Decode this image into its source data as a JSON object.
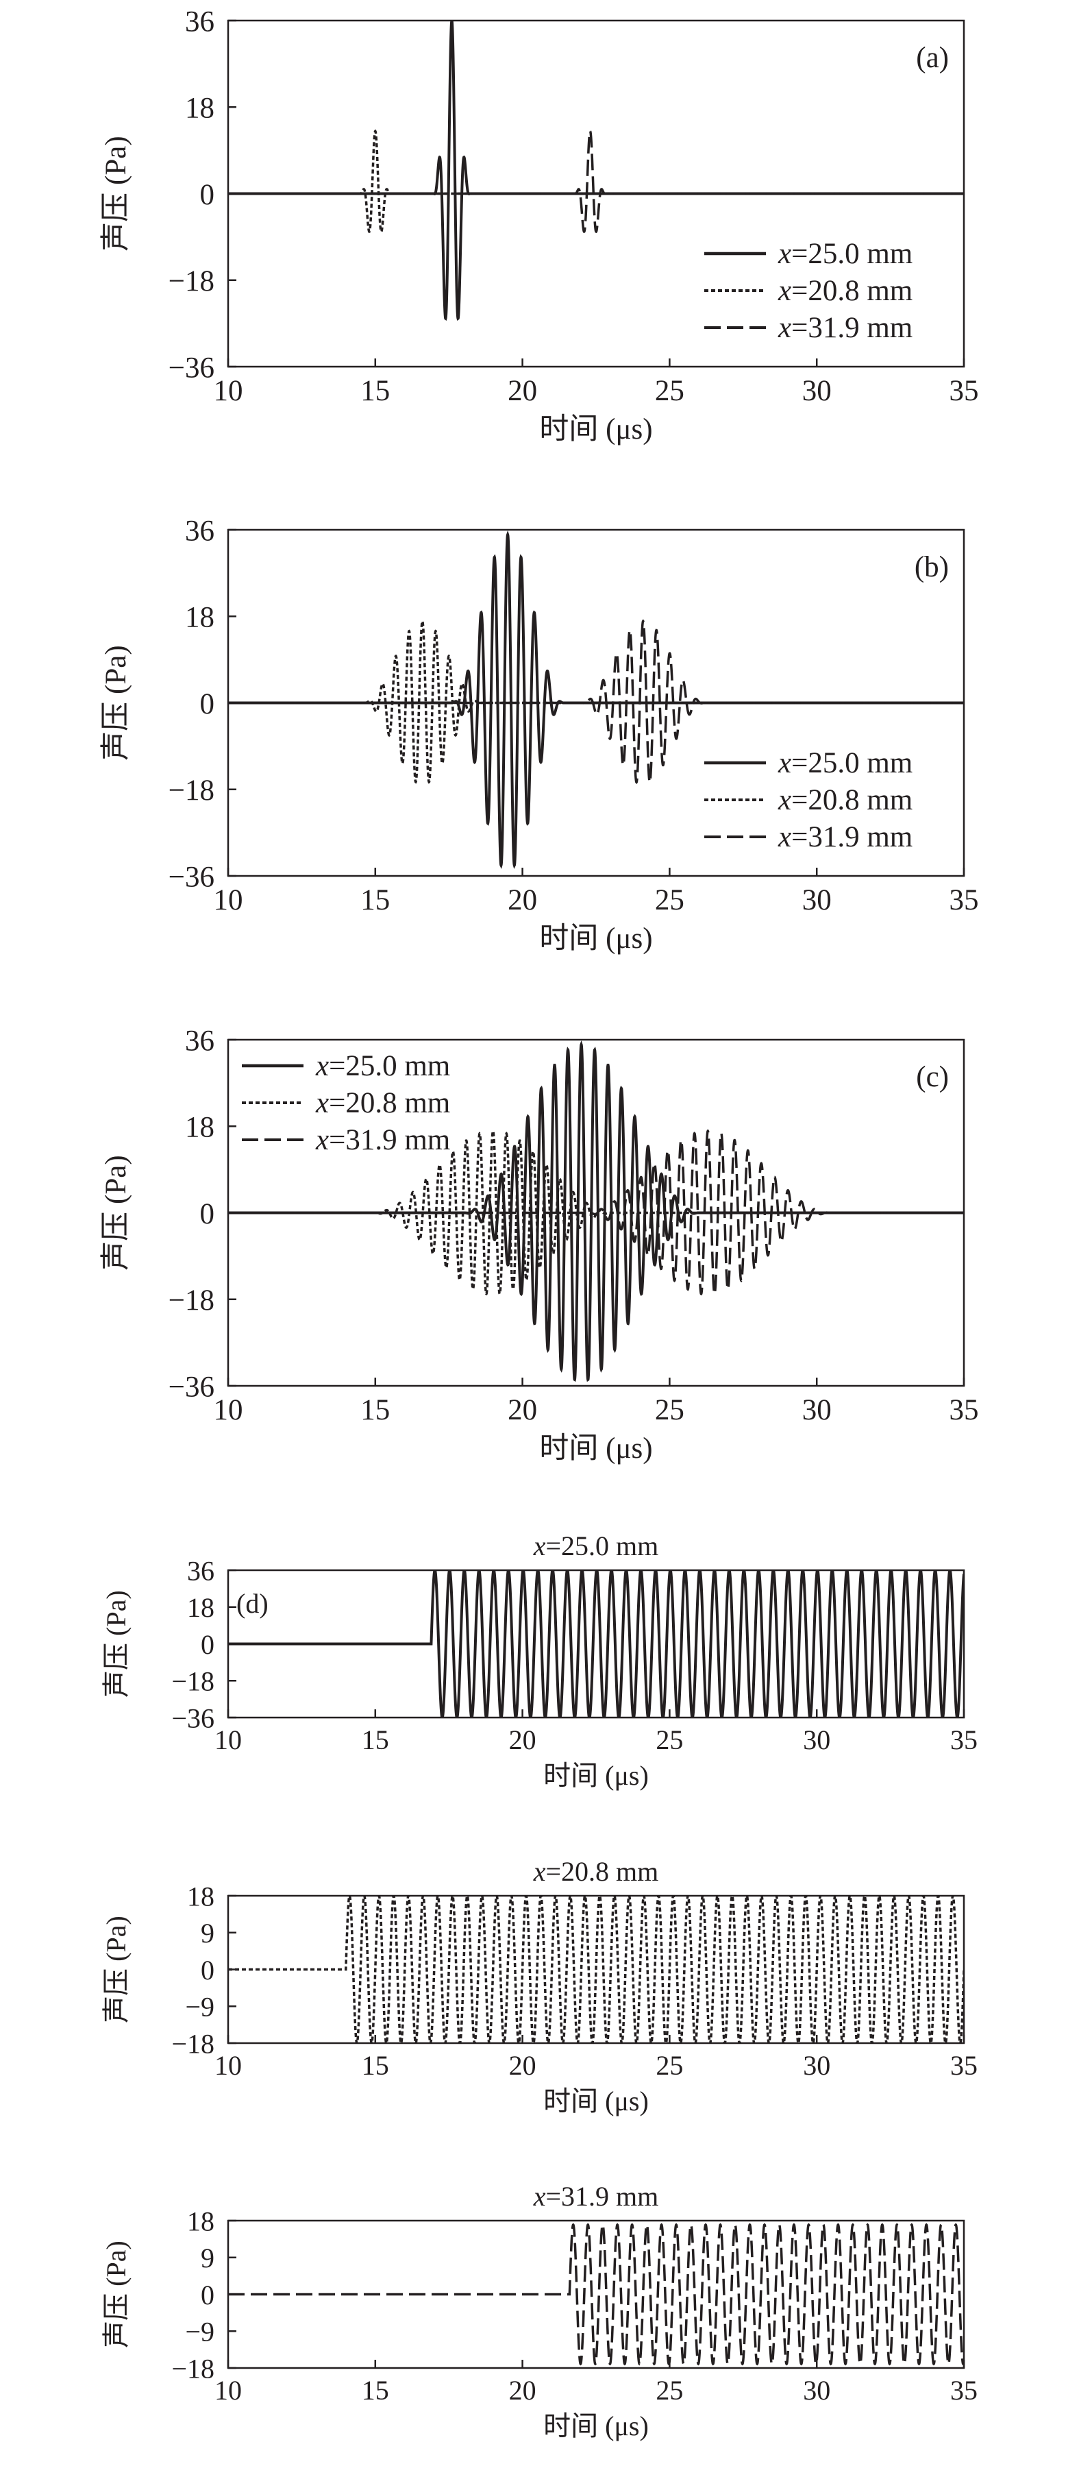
{
  "colors": {
    "ink": "#231f20",
    "background": "#ffffff"
  },
  "chart_data": [
    {
      "type": "line",
      "panel_label": "(a)",
      "title": "",
      "xlabel": "时间 (μs)",
      "ylabel": "声压 (Pa)",
      "xlim": [
        10,
        35
      ],
      "ylim": [
        -36,
        36
      ],
      "xticks": [
        10,
        15,
        20,
        25,
        30,
        35
      ],
      "yticks": [
        36,
        18,
        0,
        -18,
        -36
      ],
      "ytick_labels": [
        "36",
        "18",
        "0",
        "−18",
        "−36"
      ],
      "legend_position": "bottom-right",
      "series": [
        {
          "name": "x=25.0 mm",
          "name_italic": "x",
          "name_rest": "=25.0 mm",
          "style": "solid",
          "waveform": "tone-burst",
          "amplitude": 36,
          "center_us": 17.6,
          "carrier_mhz": 2.2,
          "envelope_halfwidth_us": 0.62,
          "start_us": 17.0,
          "continuous": false
        },
        {
          "name": "x=20.8 mm",
          "name_italic": "x",
          "name_rest": "=20.8 mm",
          "style": "dotted",
          "waveform": "tone-burst",
          "amplitude": 13,
          "center_us": 15.0,
          "carrier_mhz": 2.2,
          "envelope_halfwidth_us": 0.5,
          "start_us": 14.5,
          "continuous": false
        },
        {
          "name": "x=31.9 mm",
          "name_italic": "x",
          "name_rest": "=31.9 mm",
          "style": "dashed",
          "waveform": "tone-burst",
          "amplitude": 13,
          "center_us": 22.3,
          "carrier_mhz": 2.2,
          "envelope_halfwidth_us": 0.5,
          "start_us": 21.8,
          "continuous": false
        }
      ]
    },
    {
      "type": "line",
      "panel_label": "(b)",
      "title": "",
      "xlabel": "时间 (μs)",
      "ylabel": "声压 (Pa)",
      "xlim": [
        10,
        35
      ],
      "ylim": [
        -36,
        36
      ],
      "xticks": [
        10,
        15,
        20,
        25,
        30,
        35
      ],
      "yticks": [
        36,
        18,
        0,
        -18,
        -36
      ],
      "ytick_labels": [
        "36",
        "18",
        "0",
        "−18",
        "−36"
      ],
      "legend_position": "bottom-right",
      "series": [
        {
          "name": "x=25.0 mm",
          "name_italic": "x",
          "name_rest": "=25.0 mm",
          "style": "solid",
          "waveform": "tone-burst",
          "amplitude": 35,
          "center_us": 19.5,
          "carrier_mhz": 2.2,
          "envelope_halfwidth_us": 1.9,
          "start_us": 17.5,
          "continuous": false
        },
        {
          "name": "x=20.8 mm",
          "name_italic": "x",
          "name_rest": "=20.8 mm",
          "style": "dotted",
          "waveform": "tone-burst",
          "amplitude": 17,
          "center_us": 16.6,
          "carrier_mhz": 2.2,
          "envelope_halfwidth_us": 2.0,
          "start_us": 14.6,
          "continuous": false
        },
        {
          "name": "x=31.9 mm",
          "name_italic": "x",
          "name_rest": "=31.9 mm",
          "style": "dashed",
          "waveform": "tone-burst",
          "amplitude": 17,
          "center_us": 24.1,
          "carrier_mhz": 2.2,
          "envelope_halfwidth_us": 2.1,
          "start_us": 22.0,
          "continuous": false
        }
      ]
    },
    {
      "type": "line",
      "panel_label": "(c)",
      "title": "",
      "xlabel": "时间 (μs)",
      "ylabel": "声压 (Pa)",
      "xlim": [
        10,
        35
      ],
      "ylim": [
        -36,
        36
      ],
      "xticks": [
        10,
        15,
        20,
        25,
        30,
        35
      ],
      "yticks": [
        36,
        18,
        0,
        -18,
        -36
      ],
      "ytick_labels": [
        "36",
        "18",
        "0",
        "−18",
        "−36"
      ],
      "legend_position": "top-left",
      "series": [
        {
          "name": "x=25.0 mm",
          "name_italic": "x",
          "name_rest": "=25.0 mm",
          "style": "solid",
          "waveform": "tone-burst",
          "amplitude": 35,
          "center_us": 22.0,
          "carrier_mhz": 2.2,
          "envelope_halfwidth_us": 4.0,
          "start_us": 17.8,
          "continuous": false
        },
        {
          "name": "x=20.8 mm",
          "name_italic": "x",
          "name_rest": "=20.8 mm",
          "style": "dotted",
          "waveform": "tone-burst",
          "amplitude": 17,
          "center_us": 19.0,
          "carrier_mhz": 2.2,
          "envelope_halfwidth_us": 4.1,
          "start_us": 14.9,
          "continuous": false
        },
        {
          "name": "x=31.9 mm",
          "name_italic": "x",
          "name_rest": "=31.9 mm",
          "style": "dashed",
          "waveform": "tone-burst",
          "amplitude": 17,
          "center_us": 26.3,
          "carrier_mhz": 2.2,
          "envelope_halfwidth_us": 4.2,
          "start_us": 22.1,
          "continuous": false
        }
      ]
    },
    {
      "type": "line",
      "panel_label": "(d)",
      "title": "",
      "title_italic": "x",
      "title_rest": "=25.0 mm",
      "xlabel": "时间 (μs)",
      "ylabel": "声压 (Pa)",
      "xlim": [
        10,
        35
      ],
      "ylim": [
        -36,
        36
      ],
      "xticks": [
        10,
        15,
        20,
        25,
        30,
        35
      ],
      "yticks": [
        36,
        18,
        0,
        -18,
        -36
      ],
      "ytick_labels": [
        "36",
        "18",
        "0",
        "−18",
        "−36"
      ],
      "series": [
        {
          "name": "",
          "style": "solid",
          "waveform": "continuous",
          "amplitude": 36,
          "carrier_mhz": 2.0,
          "start_us": 16.9,
          "continuous": true
        }
      ]
    },
    {
      "type": "line",
      "panel_label": "",
      "title": "",
      "title_italic": "x",
      "title_rest": "=20.8 mm",
      "xlabel": "时间 (μs)",
      "ylabel": "声压 (Pa)",
      "xlim": [
        10,
        35
      ],
      "ylim": [
        -18,
        18
      ],
      "xticks": [
        10,
        15,
        20,
        25,
        30,
        35
      ],
      "yticks": [
        18,
        9,
        0,
        -9,
        -18
      ],
      "ytick_labels": [
        "18",
        "9",
        "0",
        "−9",
        "−18"
      ],
      "series": [
        {
          "name": "",
          "style": "dotted",
          "waveform": "continuous",
          "amplitude": 18,
          "carrier_mhz": 2.0,
          "start_us": 14.0,
          "continuous": true
        }
      ]
    },
    {
      "type": "line",
      "panel_label": "",
      "title": "",
      "title_italic": "x",
      "title_rest": "=31.9 mm",
      "xlabel": "时间 (μs)",
      "ylabel": "声压 (Pa)",
      "xlim": [
        10,
        35
      ],
      "ylim": [
        -18,
        18
      ],
      "xticks": [
        10,
        15,
        20,
        25,
        30,
        35
      ],
      "yticks": [
        18,
        9,
        0,
        -9,
        -18
      ],
      "ytick_labels": [
        "18",
        "9",
        "0",
        "−9",
        "−18"
      ],
      "series": [
        {
          "name": "",
          "style": "dashed",
          "waveform": "continuous",
          "amplitude": 17,
          "carrier_mhz": 2.0,
          "start_us": 21.6,
          "continuous": true
        }
      ]
    }
  ]
}
